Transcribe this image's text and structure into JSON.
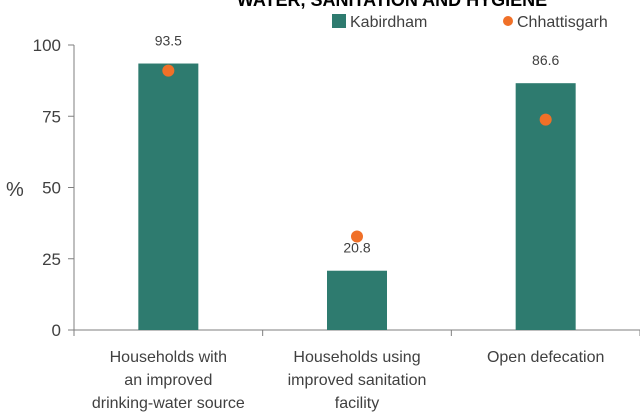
{
  "chart_data": {
    "type": "bar",
    "title": "WATER, SANITATION AND HYGIENE",
    "ylabel": "%",
    "xlabel": "",
    "ylim": [
      0,
      100
    ],
    "yticks": [
      0,
      25,
      50,
      75,
      100
    ],
    "categories": [
      [
        "Households with",
        "an improved",
        "drinking-water source"
      ],
      [
        "Households using",
        "improved sanitation",
        "facility"
      ],
      [
        "Open defecation"
      ]
    ],
    "series": [
      {
        "name": "Kabirdham",
        "kind": "bar",
        "color": "#2E7B6F",
        "values": [
          93.5,
          20.8,
          86.6
        ]
      },
      {
        "name": "Chhattisgarh",
        "kind": "marker",
        "color": "#F07028",
        "values": [
          91.0,
          32.8,
          73.8
        ]
      }
    ],
    "data_labels": [
      "93.5",
      "20.8",
      "86.6"
    ],
    "legend_position": "top-right",
    "grid": false
  }
}
